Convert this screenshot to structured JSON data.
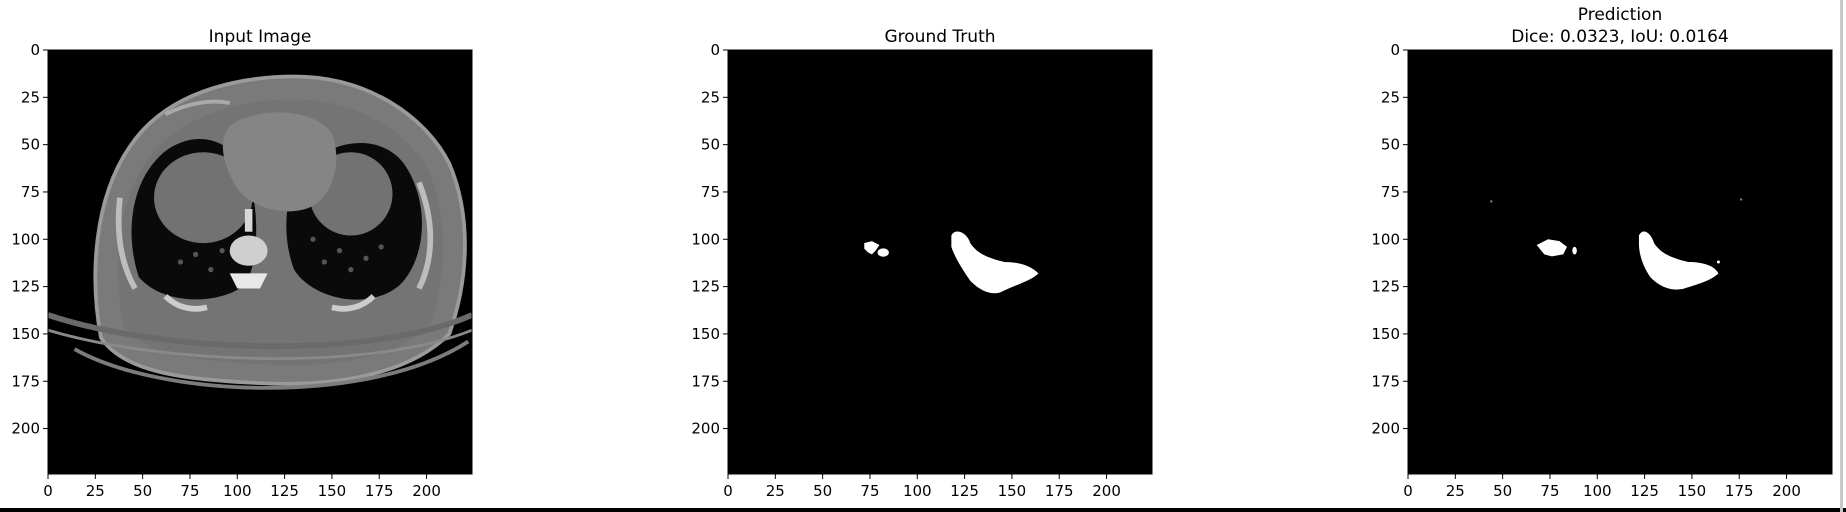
{
  "chart_data": [
    {
      "type": "image",
      "title": "Input Image",
      "xticks": [
        0,
        25,
        50,
        75,
        100,
        125,
        150,
        175,
        200
      ],
      "yticks": [
        0,
        25,
        50,
        75,
        100,
        125,
        150,
        175,
        200
      ],
      "xlim": [
        0,
        224
      ],
      "ylim": [
        224,
        0
      ],
      "image_size": [
        224,
        224
      ],
      "colormap": "gray"
    },
    {
      "type": "image",
      "title": "Ground Truth",
      "xticks": [
        0,
        25,
        50,
        75,
        100,
        125,
        150,
        175,
        200
      ],
      "yticks": [
        0,
        25,
        50,
        75,
        100,
        125,
        150,
        175,
        200
      ],
      "xlim": [
        0,
        224
      ],
      "ylim": [
        224,
        0
      ],
      "image_size": [
        224,
        224
      ],
      "colormap": "gray"
    },
    {
      "type": "image",
      "title": "Prediction",
      "subtitle": "Dice: 0.0323, IoU: 0.0164",
      "xticks": [
        0,
        25,
        50,
        75,
        100,
        125,
        150,
        175,
        200
      ],
      "yticks": [
        0,
        25,
        50,
        75,
        100,
        125,
        150,
        175,
        200
      ],
      "xlim": [
        0,
        224
      ],
      "ylim": [
        224,
        0
      ],
      "image_size": [
        224,
        224
      ],
      "colormap": "gray"
    }
  ],
  "colors": {
    "background": "#000000",
    "foreground": "#ffffff",
    "axis": "#000000",
    "page": "#ffffff"
  }
}
